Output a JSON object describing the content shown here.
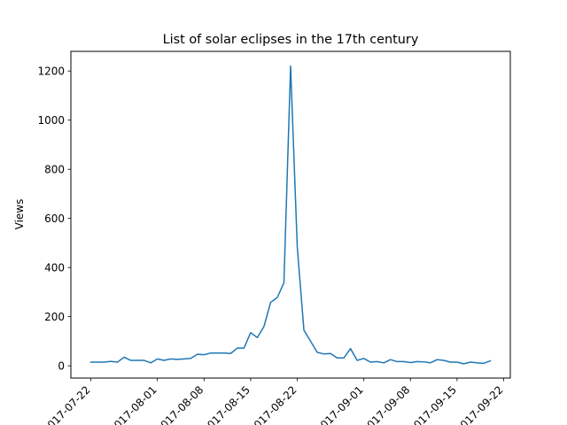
{
  "chart_data": {
    "type": "line",
    "title": "List of solar eclipses in the 17th century",
    "xlabel": "",
    "ylabel": "Views",
    "x_tick_labels": [
      "2017-07-22",
      "2017-08-01",
      "2017-08-08",
      "2017-08-15",
      "2017-08-22",
      "2017-09-01",
      "2017-09-08",
      "2017-09-15",
      "2017-09-22"
    ],
    "x_tick_dates": [
      "2017-07-22",
      "2017-08-01",
      "2017-08-08",
      "2017-08-15",
      "2017-08-22",
      "2017-09-01",
      "2017-09-08",
      "2017-09-15",
      "2017-09-22"
    ],
    "y_ticks": [
      0,
      200,
      400,
      600,
      800,
      1000,
      1200
    ],
    "xlim": [
      "2017-07-19",
      "2017-09-23"
    ],
    "ylim": [
      -50,
      1280
    ],
    "grid": false,
    "series": [
      {
        "name": "Views",
        "color": "#1f77b4",
        "x": [
          "2017-07-22",
          "2017-07-23",
          "2017-07-24",
          "2017-07-25",
          "2017-07-26",
          "2017-07-27",
          "2017-07-28",
          "2017-07-29",
          "2017-07-30",
          "2017-07-31",
          "2017-08-01",
          "2017-08-02",
          "2017-08-03",
          "2017-08-04",
          "2017-08-05",
          "2017-08-06",
          "2017-08-07",
          "2017-08-08",
          "2017-08-09",
          "2017-08-10",
          "2017-08-11",
          "2017-08-12",
          "2017-08-13",
          "2017-08-14",
          "2017-08-15",
          "2017-08-16",
          "2017-08-17",
          "2017-08-18",
          "2017-08-19",
          "2017-08-20",
          "2017-08-21",
          "2017-08-22",
          "2017-08-23",
          "2017-08-24",
          "2017-08-25",
          "2017-08-26",
          "2017-08-27",
          "2017-08-28",
          "2017-08-29",
          "2017-08-30",
          "2017-08-31",
          "2017-09-01",
          "2017-09-02",
          "2017-09-03",
          "2017-09-04",
          "2017-09-05",
          "2017-09-06",
          "2017-09-07",
          "2017-09-08",
          "2017-09-09",
          "2017-09-10",
          "2017-09-11",
          "2017-09-12",
          "2017-09-13",
          "2017-09-14",
          "2017-09-15",
          "2017-09-16",
          "2017-09-17",
          "2017-09-18",
          "2017-09-19",
          "2017-09-20"
        ],
        "values": [
          15,
          15,
          15,
          18,
          15,
          35,
          22,
          22,
          22,
          12,
          28,
          22,
          28,
          26,
          28,
          30,
          47,
          45,
          52,
          52,
          52,
          50,
          72,
          72,
          135,
          115,
          160,
          258,
          278,
          338,
          1220,
          485,
          145,
          100,
          55,
          48,
          50,
          32,
          32,
          70,
          22,
          30,
          15,
          17,
          12,
          25,
          17,
          17,
          13,
          17,
          16,
          12,
          25,
          22,
          15,
          15,
          8,
          15,
          12,
          10,
          20
        ]
      }
    ]
  }
}
